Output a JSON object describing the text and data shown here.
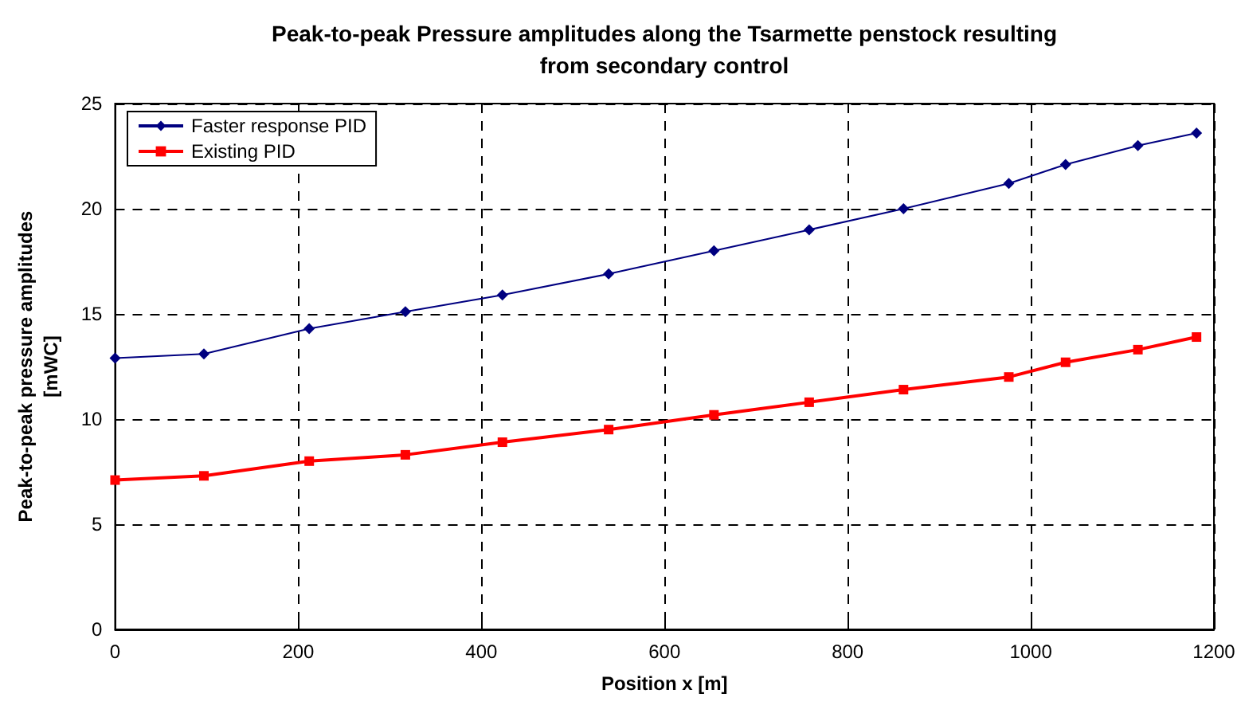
{
  "chart_data": {
    "type": "line",
    "title": "Peak-to-peak Pressure amplitudes along the Tsarmette penstock resulting\nfrom secondary control",
    "xlabel": "Position x [m]",
    "ylabel": "Peak-to-peak pressure amplitudes\n[mWC]",
    "x": [
      0,
      97,
      212,
      317,
      423,
      539,
      654,
      758,
      861,
      976,
      1038,
      1117,
      1181
    ],
    "series": [
      {
        "name": "Faster response PID",
        "color": "#000080",
        "marker": "diamond",
        "values": [
          12.9,
          13.1,
          14.3,
          15.1,
          15.9,
          16.9,
          18.0,
          19.0,
          20.0,
          21.2,
          22.1,
          23.0,
          23.6
        ]
      },
      {
        "name": "Existing PID",
        "color": "#ff0000",
        "marker": "square",
        "values": [
          7.1,
          7.3,
          8.0,
          8.3,
          8.9,
          9.5,
          10.2,
          10.8,
          11.4,
          12.0,
          12.7,
          13.3,
          13.9
        ]
      }
    ],
    "xlim": [
      0,
      1200
    ],
    "xticks": [
      0,
      200,
      400,
      600,
      800,
      1000,
      1200
    ],
    "ylim": [
      0,
      25
    ],
    "yticks": [
      0,
      5,
      10,
      15,
      20,
      25
    ],
    "grid": true,
    "legend": "top left",
    "line_style": "solid"
  }
}
